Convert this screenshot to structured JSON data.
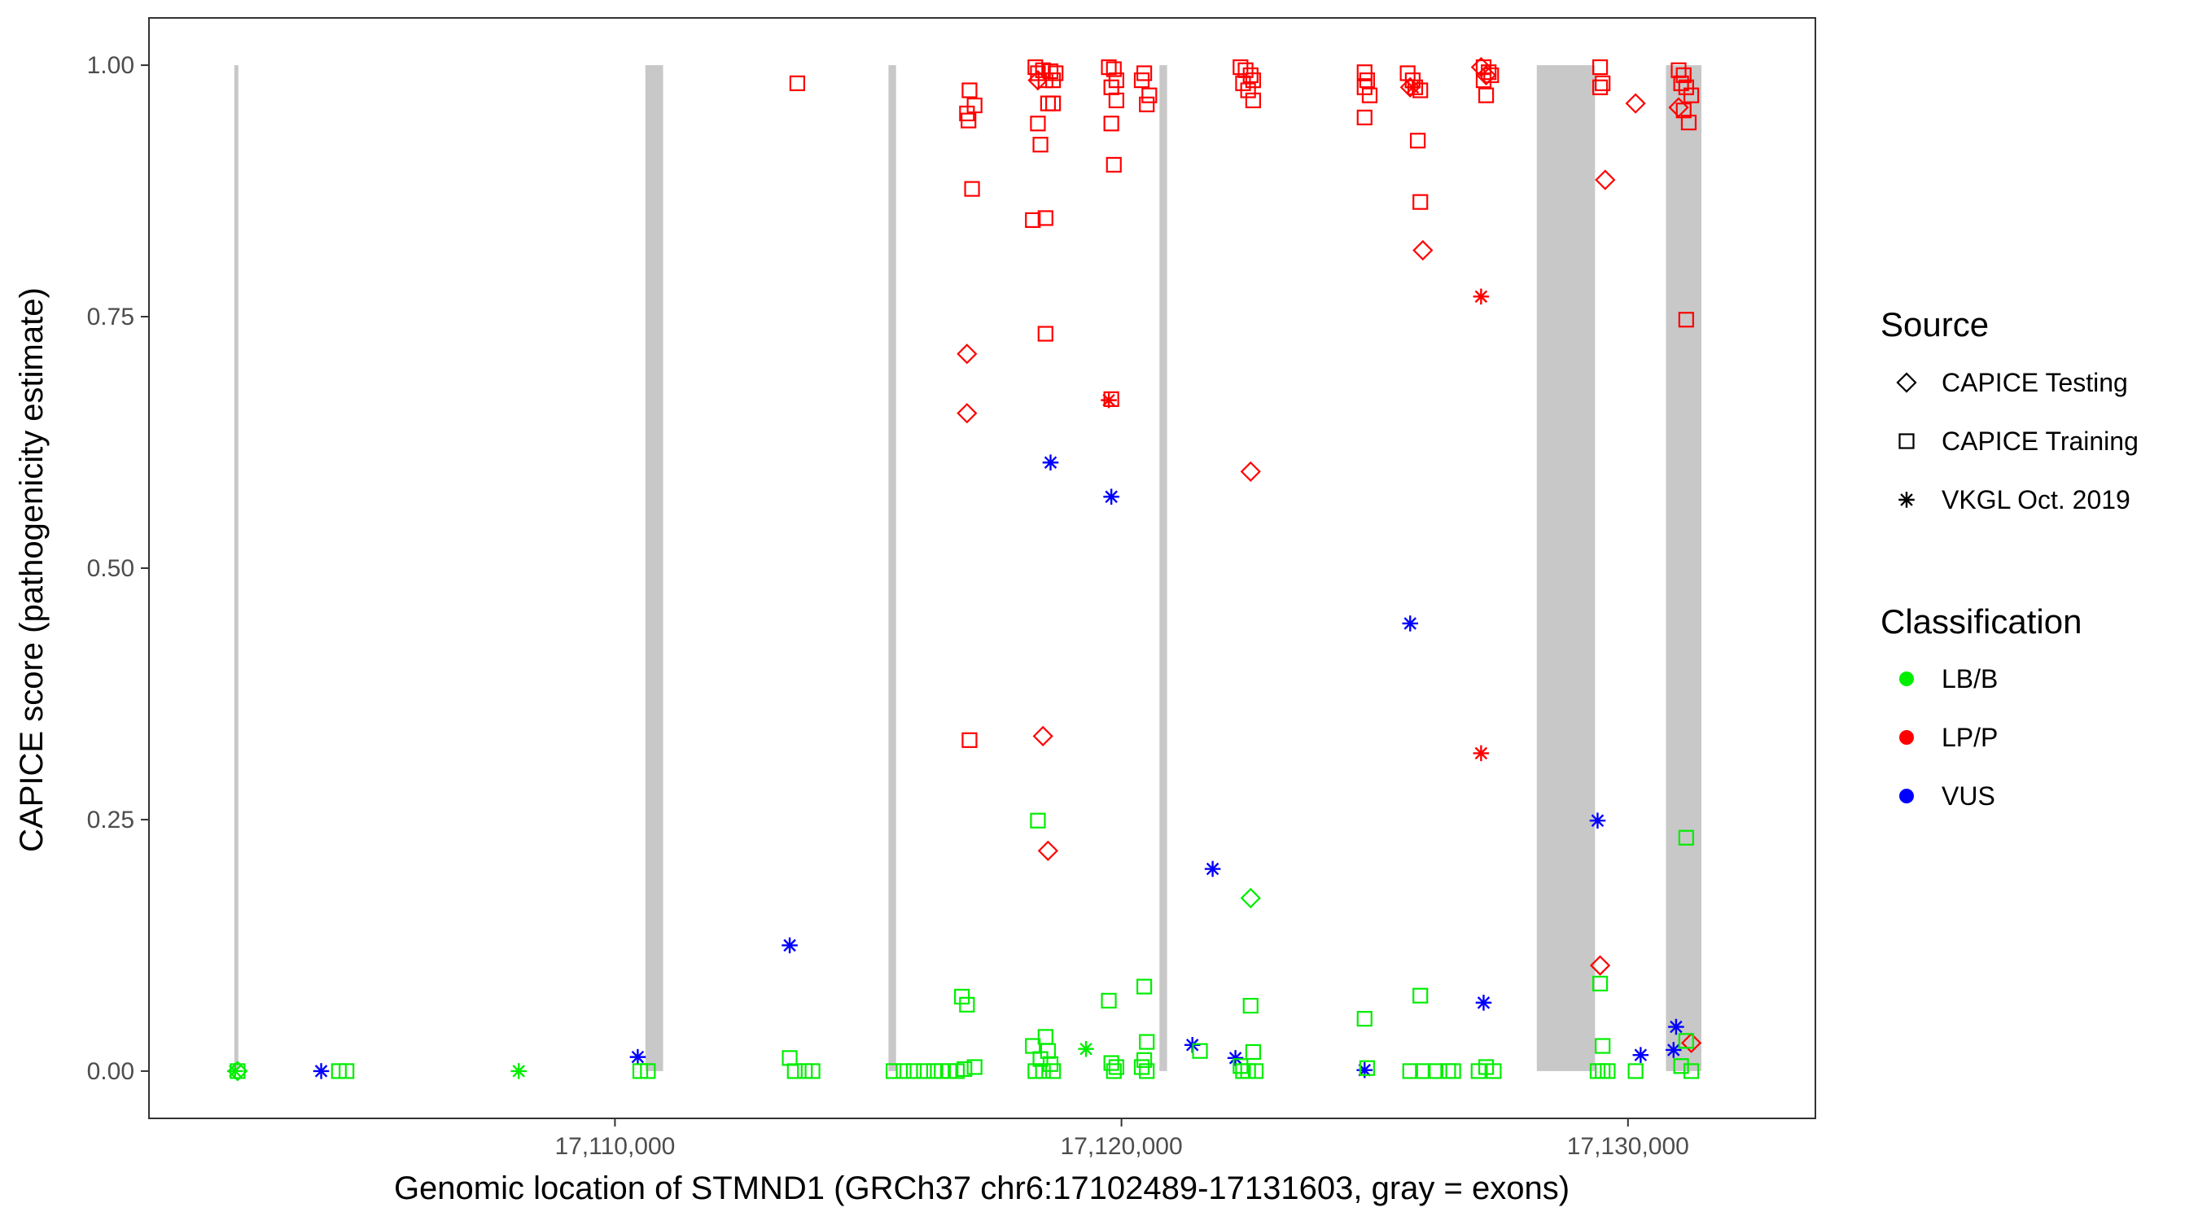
{
  "chart_data": {
    "type": "scatter",
    "xlabel": "Genomic location of STMND1 (GRCh37 chr6:17102489-17131603, gray = exons)",
    "ylabel": "CAPICE score (pathogenicity estimate)",
    "xlim": [
      17100800,
      17133700
    ],
    "ylim": [
      -0.047,
      1.047
    ],
    "x_ticks": [
      17110000,
      17120000,
      17130000
    ],
    "x_tick_labels": [
      "17,110,000",
      "17,120,000",
      "17,130,000"
    ],
    "y_ticks": [
      0,
      0.25,
      0.5,
      0.75,
      1.0
    ],
    "y_tick_labels": [
      "0.00",
      "0.25",
      "0.50",
      "0.75",
      "1.00"
    ],
    "grid": false,
    "exons": [
      {
        "start": 17102489,
        "end": 17102560
      },
      {
        "start": 17110600,
        "end": 17110950
      },
      {
        "start": 17115400,
        "end": 17115550
      },
      {
        "start": 17120750,
        "end": 17120900
      },
      {
        "start": 17128200,
        "end": 17129350
      },
      {
        "start": 17130750,
        "end": 17131450
      }
    ],
    "legend": {
      "placement": "right",
      "source_title": "Source",
      "source_items": [
        {
          "label": "CAPICE Testing",
          "shape": "diamond"
        },
        {
          "label": "CAPICE Training",
          "shape": "square"
        },
        {
          "label": "VKGL Oct. 2019",
          "shape": "asterisk"
        }
      ],
      "class_title": "Classification",
      "class_items": [
        {
          "label": "LB/B",
          "color": "#00ee00"
        },
        {
          "label": "LP/P",
          "color": "#ff0000"
        },
        {
          "label": "VUS",
          "color": "#0000ff"
        }
      ]
    },
    "series": [
      {
        "source": "CAPICE Training",
        "classification": "LP/P",
        "shape": "square",
        "color": "#ff0000",
        "points": [
          [
            17113600,
            0.982
          ],
          [
            17117000,
            0.975
          ],
          [
            17117100,
            0.96
          ],
          [
            17116950,
            0.952
          ],
          [
            17116980,
            0.945
          ],
          [
            17117050,
            0.877
          ],
          [
            17117000,
            0.329
          ],
          [
            17118300,
            0.998
          ],
          [
            17118350,
            0.992
          ],
          [
            17118450,
            0.995
          ],
          [
            17118600,
            0.994
          ],
          [
            17118700,
            0.992
          ],
          [
            17118500,
            0.985
          ],
          [
            17118650,
            0.985
          ],
          [
            17118350,
            0.942
          ],
          [
            17118400,
            0.921
          ],
          [
            17118550,
            0.962
          ],
          [
            17118650,
            0.962
          ],
          [
            17118250,
            0.846
          ],
          [
            17118500,
            0.848
          ],
          [
            17118500,
            0.733
          ],
          [
            17119750,
            0.998
          ],
          [
            17119850,
            0.996
          ],
          [
            17119900,
            0.985
          ],
          [
            17119800,
            0.978
          ],
          [
            17119900,
            0.965
          ],
          [
            17119800,
            0.942
          ],
          [
            17119850,
            0.901
          ],
          [
            17119800,
            0.668
          ],
          [
            17120450,
            0.992
          ],
          [
            17120400,
            0.985
          ],
          [
            17120550,
            0.97
          ],
          [
            17120500,
            0.961
          ],
          [
            17122350,
            0.998
          ],
          [
            17122450,
            0.995
          ],
          [
            17122550,
            0.99
          ],
          [
            17122600,
            0.985
          ],
          [
            17122400,
            0.982
          ],
          [
            17122500,
            0.975
          ],
          [
            17122600,
            0.965
          ],
          [
            17124800,
            0.993
          ],
          [
            17124850,
            0.985
          ],
          [
            17124800,
            0.978
          ],
          [
            17124900,
            0.97
          ],
          [
            17124800,
            0.948
          ],
          [
            17125650,
            0.992
          ],
          [
            17125750,
            0.985
          ],
          [
            17125800,
            0.978
          ],
          [
            17125900,
            0.975
          ],
          [
            17125850,
            0.925
          ],
          [
            17125900,
            0.864
          ],
          [
            17127150,
            0.998
          ],
          [
            17127250,
            0.993
          ],
          [
            17127150,
            0.985
          ],
          [
            17127300,
            0.99
          ],
          [
            17127200,
            0.97
          ],
          [
            17129450,
            0.998
          ],
          [
            17129500,
            0.982
          ],
          [
            17129450,
            0.978
          ],
          [
            17131000,
            0.995
          ],
          [
            17131100,
            0.99
          ],
          [
            17131050,
            0.982
          ],
          [
            17131150,
            0.978
          ],
          [
            17131250,
            0.97
          ],
          [
            17131100,
            0.955
          ],
          [
            17131200,
            0.943
          ],
          [
            17131150,
            0.747
          ]
        ]
      },
      {
        "source": "CAPICE Testing",
        "classification": "LP/P",
        "shape": "diamond",
        "color": "#ff0000",
        "points": [
          [
            17118350,
            0.985
          ],
          [
            17116950,
            0.713
          ],
          [
            17116950,
            0.654
          ],
          [
            17118450,
            0.333
          ],
          [
            17118550,
            0.219
          ],
          [
            17122550,
            0.596
          ],
          [
            17125950,
            0.816
          ],
          [
            17125700,
            0.978
          ],
          [
            17127100,
            0.998
          ],
          [
            17127200,
            0.99
          ],
          [
            17129550,
            0.886
          ],
          [
            17130150,
            0.962
          ],
          [
            17129450,
            0.105
          ],
          [
            17131000,
            0.958
          ],
          [
            17131250,
            0.028
          ]
        ]
      },
      {
        "source": "VKGL Oct. 2019",
        "classification": "LP/P",
        "shape": "asterisk",
        "color": "#ff0000",
        "points": [
          [
            17119750,
            0.667
          ],
          [
            17127100,
            0.77
          ],
          [
            17127100,
            0.316
          ],
          [
            17125750,
            0.978
          ]
        ]
      },
      {
        "source": "VKGL Oct. 2019",
        "classification": "VUS",
        "shape": "asterisk",
        "color": "#0000ff",
        "points": [
          [
            17104200,
            0.0
          ],
          [
            17110450,
            0.014
          ],
          [
            17113450,
            0.125
          ],
          [
            17118600,
            0.605
          ],
          [
            17119800,
            0.571
          ],
          [
            17121400,
            0.026
          ],
          [
            17121800,
            0.201
          ],
          [
            17122250,
            0.013
          ],
          [
            17124800,
            0.001
          ],
          [
            17125700,
            0.445
          ],
          [
            17127150,
            0.068
          ],
          [
            17129400,
            0.249
          ],
          [
            17130250,
            0.016
          ],
          [
            17130950,
            0.044
          ],
          [
            17130900,
            0.021
          ]
        ]
      },
      {
        "source": "VKGL Oct. 2019",
        "classification": "LB/B",
        "shape": "asterisk",
        "color": "#00ee00",
        "points": [
          [
            17102500,
            0.0
          ],
          [
            17108100,
            0.0
          ],
          [
            17119300,
            0.022
          ]
        ]
      },
      {
        "source": "CAPICE Testing",
        "classification": "LB/B",
        "shape": "diamond",
        "color": "#00ee00",
        "points": [
          [
            17122550,
            0.172
          ],
          [
            17102550,
            0.0
          ]
        ]
      },
      {
        "source": "CAPICE Training",
        "classification": "LB/B",
        "shape": "square",
        "color": "#00ee00",
        "points": [
          [
            17102550,
            0.0
          ],
          [
            17104550,
            0.0
          ],
          [
            17104700,
            0.0
          ],
          [
            17110500,
            0.0
          ],
          [
            17110650,
            0.0
          ],
          [
            17113450,
            0.013
          ],
          [
            17113550,
            0.0
          ],
          [
            17113750,
            0.0
          ],
          [
            17113900,
            0.0
          ],
          [
            17115500,
            0.0
          ],
          [
            17115700,
            0.0
          ],
          [
            17115900,
            0.0
          ],
          [
            17116100,
            0.0
          ],
          [
            17116300,
            0.0
          ],
          [
            17116450,
            0.0
          ],
          [
            17116600,
            0.0
          ],
          [
            17116750,
            0.0
          ],
          [
            17116900,
            0.002
          ],
          [
            17117100,
            0.004
          ],
          [
            17116850,
            0.074
          ],
          [
            17116950,
            0.066
          ],
          [
            17118250,
            0.025
          ],
          [
            17118400,
            0.012
          ],
          [
            17118500,
            0.034
          ],
          [
            17118550,
            0.02
          ],
          [
            17118600,
            0.007
          ],
          [
            17118300,
            0.0
          ],
          [
            17118450,
            0.0
          ],
          [
            17118650,
            0.0
          ],
          [
            17118350,
            0.249
          ],
          [
            17119750,
            0.07
          ],
          [
            17119800,
            0.008
          ],
          [
            17119900,
            0.004
          ],
          [
            17119850,
            0.0
          ],
          [
            17120450,
            0.084
          ],
          [
            17120500,
            0.029
          ],
          [
            17120450,
            0.011
          ],
          [
            17120400,
            0.004
          ],
          [
            17120500,
            0.0
          ],
          [
            17121550,
            0.02
          ],
          [
            17122350,
            0.005
          ],
          [
            17122400,
            0.0
          ],
          [
            17122500,
            0.0
          ],
          [
            17122650,
            0.0
          ],
          [
            17122550,
            0.065
          ],
          [
            17122600,
            0.019
          ],
          [
            17124800,
            0.052
          ],
          [
            17124850,
            0.003
          ],
          [
            17125700,
            0.0
          ],
          [
            17125900,
            0.075
          ],
          [
            17125950,
            0.0
          ],
          [
            17126200,
            0.0
          ],
          [
            17126450,
            0.0
          ],
          [
            17126550,
            0.0
          ],
          [
            17127050,
            0.0
          ],
          [
            17127200,
            0.004
          ],
          [
            17127350,
            0.0
          ],
          [
            17129450,
            0.087
          ],
          [
            17129500,
            0.025
          ],
          [
            17129500,
            0.0
          ],
          [
            17129400,
            0.0
          ],
          [
            17129600,
            0.0
          ],
          [
            17130150,
            0.0
          ],
          [
            17131150,
            0.232
          ],
          [
            17131150,
            0.03
          ],
          [
            17131050,
            0.005
          ],
          [
            17131250,
            0.0
          ]
        ]
      }
    ]
  }
}
